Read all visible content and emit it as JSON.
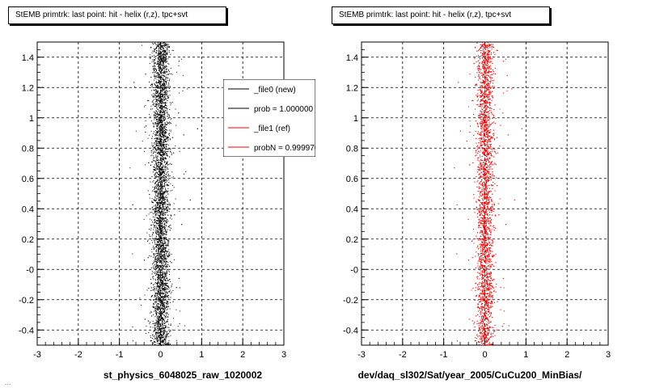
{
  "footer_text": "...",
  "chart_data": [
    {
      "type": "scatter",
      "title": "StEMB primtrk: last point: hit - helix (r,z), tpc+svt",
      "xlabel": "st_physics_6048025_raw_1020002",
      "ylabel": "",
      "xlim": [
        -3,
        3
      ],
      "ylim": [
        -0.5,
        1.5
      ],
      "x_ticks": [
        -3,
        -2,
        -1,
        0,
        1,
        2,
        3
      ],
      "y_ticks": [
        -0.4,
        -0.2,
        0,
        0.2,
        0.4,
        0.6,
        0.8,
        1,
        1.2,
        1.4
      ],
      "y_tick_labels": [
        "-0.4",
        "-0.2",
        "-0",
        "0.2",
        "0.4",
        "0.6",
        "0.8",
        "1",
        "1.2",
        "1.4"
      ],
      "grid": true,
      "series": [
        {
          "name": "_file0 (new)",
          "color": "#000000",
          "x_center": 0.0,
          "x_spread": 0.1
        }
      ],
      "legend": {
        "placement": "top-right",
        "entries": [
          {
            "label": "_file0 (new)",
            "color": "#000000"
          },
          {
            "label": "prob = 1.000000",
            "color": "#000000"
          },
          {
            "label": "_file1 (ref)",
            "color": "#ff0000"
          },
          {
            "label": "probN = 0.999970",
            "color": "#ff0000"
          }
        ]
      }
    },
    {
      "type": "scatter",
      "title": "StEMB primtrk: last point: hit - helix (r,z), tpc+svt",
      "xlabel": "dev/daq_sl302/Sat/year_2005/CuCu200_MinBias/",
      "ylabel": "",
      "xlim": [
        -3,
        3
      ],
      "ylim": [
        -0.5,
        1.5
      ],
      "x_ticks": [
        -3,
        -2,
        -1,
        0,
        1,
        2,
        3
      ],
      "y_ticks": [
        -0.4,
        -0.2,
        0,
        0.2,
        0.4,
        0.6,
        0.8,
        1,
        1.2,
        1.4
      ],
      "y_tick_labels": [
        "-0.4",
        "-0.2",
        "-0",
        "0.2",
        "0.4",
        "0.6",
        "0.8",
        "1",
        "1.2",
        "1.4"
      ],
      "grid": true,
      "series": [
        {
          "name": "_file1 (ref)",
          "color": "#ff0000",
          "x_center": 0.0,
          "x_spread": 0.1
        }
      ]
    }
  ]
}
